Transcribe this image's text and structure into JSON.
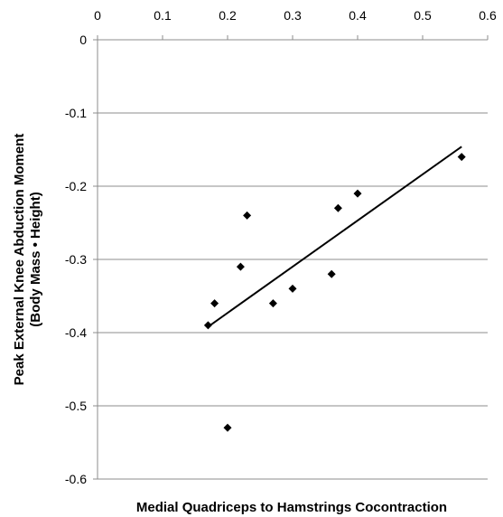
{
  "chart_data": {
    "type": "scatter",
    "title": "",
    "xlabel": "Medial Quadriceps to Hamstrings Cocontraction",
    "ylabel_lines": [
      "Peak External Knee Abduction Moment",
      "(Body Mass • Height)"
    ],
    "xlim": [
      0,
      0.6
    ],
    "ylim": [
      -0.6,
      0
    ],
    "x_ticks": [
      "0",
      "0.1",
      "0.2",
      "0.3",
      "0.4",
      "0.5",
      "0.6"
    ],
    "y_ticks": [
      "0",
      "-0.1",
      "-0.2",
      "-0.3",
      "-0.4",
      "-0.5",
      "-0.6"
    ],
    "x_axis_position": "top",
    "grid": "horizontal",
    "legend": "none",
    "series": [
      {
        "marker": "diamond",
        "color": "#000000",
        "points": [
          {
            "x": 0.17,
            "y": -0.39
          },
          {
            "x": 0.18,
            "y": -0.36
          },
          {
            "x": 0.2,
            "y": -0.53
          },
          {
            "x": 0.22,
            "y": -0.31
          },
          {
            "x": 0.23,
            "y": -0.24
          },
          {
            "x": 0.27,
            "y": -0.36
          },
          {
            "x": 0.3,
            "y": -0.34
          },
          {
            "x": 0.36,
            "y": -0.32
          },
          {
            "x": 0.37,
            "y": -0.23
          },
          {
            "x": 0.4,
            "y": -0.21
          },
          {
            "x": 0.56,
            "y": -0.16
          }
        ]
      }
    ],
    "trendline": {
      "type": "linear",
      "color": "#000000",
      "start": {
        "x": 0.17,
        "y": -0.392
      },
      "end": {
        "x": 0.56,
        "y": -0.146
      }
    }
  }
}
